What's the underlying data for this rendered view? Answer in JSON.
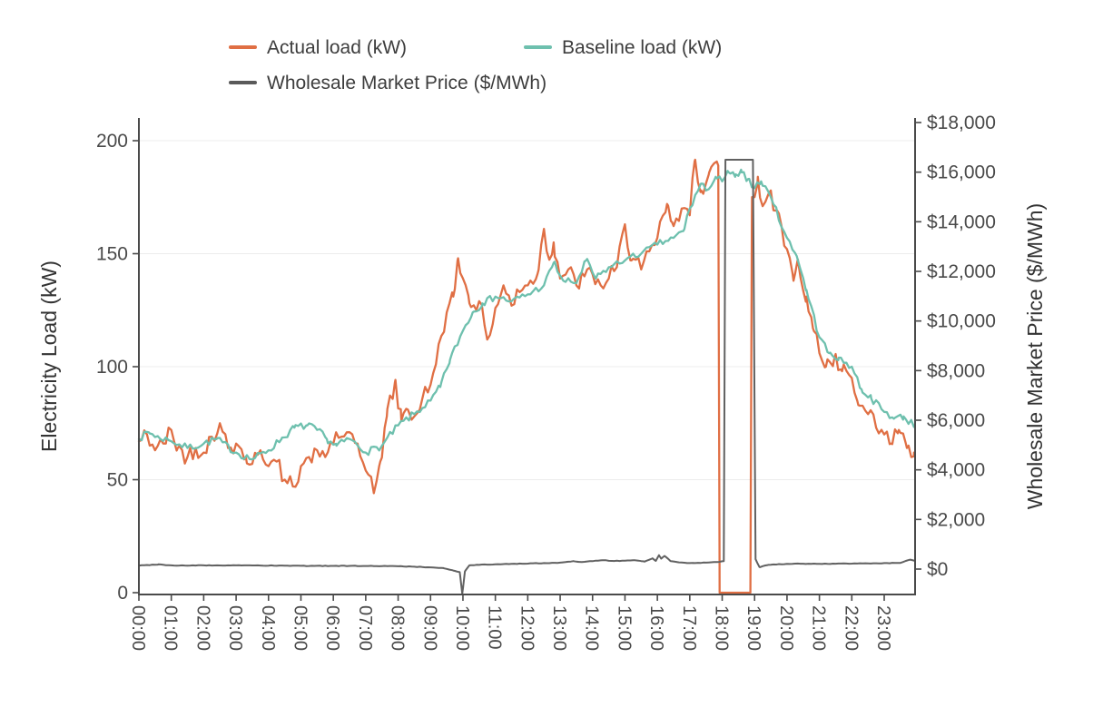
{
  "legend": {
    "items": [
      {
        "label": "Actual load (kW)",
        "color": "#e06f44"
      },
      {
        "label": "Baseline load (kW)",
        "color": "#6ec0ae"
      },
      {
        "label": "Wholesale Market Price ($/MWh)",
        "color": "#5a5a5a"
      }
    ]
  },
  "chart_data": {
    "type": "line",
    "title": "",
    "x_axis": {
      "label": "",
      "tick_labels": [
        "00:00",
        "01:00",
        "02:00",
        "03:00",
        "04:00",
        "05:00",
        "06:00",
        "07:00",
        "08:00",
        "09:00",
        "10:00",
        "11:00",
        "12:00",
        "13:00",
        "14:00",
        "15:00",
        "16:00",
        "17:00",
        "18:00",
        "19:00",
        "20:00",
        "21:00",
        "22:00",
        "23:00"
      ],
      "tick_values": [
        0,
        1,
        2,
        3,
        4,
        5,
        6,
        7,
        8,
        9,
        10,
        11,
        12,
        13,
        14,
        15,
        16,
        17,
        18,
        19,
        20,
        21,
        22,
        23
      ],
      "range_hours": [
        0,
        24
      ]
    },
    "left_axis": {
      "label": "Electricity Load (kW)",
      "tick_labels": [
        "0",
        "50",
        "100",
        "150",
        "200"
      ],
      "tick_values": [
        0,
        50,
        100,
        150,
        200
      ],
      "ylim": [
        0,
        210
      ],
      "gridlines": true
    },
    "right_axis": {
      "label": "Wholesale Market Price ($/MWh)",
      "tick_labels": [
        "$0",
        "$2,000",
        "$4,000",
        "$6,000",
        "$8,000",
        "$10,000",
        "$12,000",
        "$14,000",
        "$16,000",
        "$18,000"
      ],
      "tick_values": [
        0,
        2000,
        4000,
        6000,
        8000,
        10000,
        12000,
        14000,
        16000,
        18000
      ],
      "ylim": [
        -1020,
        18250
      ],
      "gridlines": false
    },
    "annotations": {
      "demand_response_event": {
        "load_drop_window_hours": [
          17.92,
          18.87
        ],
        "price_spike_window_hours": [
          18.1,
          18.97
        ],
        "price_spike_value": 16500,
        "load_during_event": 0
      },
      "negative_price_dip": {
        "time_hours": 9.98,
        "value": -1000
      }
    },
    "series": [
      {
        "name": "Actual load (kW)",
        "axis": "left",
        "color": "#e06f44",
        "points": [
          [
            0,
            67
          ],
          [
            0.25,
            70
          ],
          [
            0.5,
            63
          ],
          [
            0.75,
            66
          ],
          [
            1,
            72
          ],
          [
            1.2,
            64
          ],
          [
            1.5,
            60
          ],
          [
            1.75,
            64
          ],
          [
            2,
            62
          ],
          [
            2.25,
            69
          ],
          [
            2.5,
            75
          ],
          [
            2.75,
            64
          ],
          [
            3,
            66
          ],
          [
            3.3,
            60
          ],
          [
            3.5,
            57
          ],
          [
            3.75,
            63
          ],
          [
            4,
            56
          ],
          [
            4.25,
            58
          ],
          [
            4.5,
            50
          ],
          [
            4.75,
            47
          ],
          [
            5,
            56
          ],
          [
            5.25,
            60
          ],
          [
            5.5,
            63
          ],
          [
            5.75,
            60
          ],
          [
            6,
            66
          ],
          [
            6.25,
            69
          ],
          [
            6.5,
            71
          ],
          [
            6.75,
            66
          ],
          [
            7,
            54
          ],
          [
            7.25,
            44
          ],
          [
            7.45,
            58
          ],
          [
            7.65,
            78
          ],
          [
            7.9,
            93
          ],
          [
            8.1,
            76
          ],
          [
            8.3,
            81
          ],
          [
            8.5,
            78
          ],
          [
            8.75,
            86
          ],
          [
            9,
            92
          ],
          [
            9.25,
            110
          ],
          [
            9.5,
            124
          ],
          [
            9.7,
            131
          ],
          [
            9.85,
            148
          ],
          [
            10,
            139
          ],
          [
            10.2,
            128
          ],
          [
            10.5,
            129
          ],
          [
            10.75,
            112
          ],
          [
            11,
            126
          ],
          [
            11.25,
            136
          ],
          [
            11.5,
            127
          ],
          [
            11.75,
            133
          ],
          [
            12,
            136
          ],
          [
            12.3,
            141
          ],
          [
            12.5,
            161
          ],
          [
            12.65,
            148
          ],
          [
            12.8,
            155
          ],
          [
            13,
            139
          ],
          [
            13.25,
            143
          ],
          [
            13.5,
            136
          ],
          [
            13.75,
            140
          ],
          [
            14,
            141
          ],
          [
            14.25,
            136
          ],
          [
            14.5,
            139
          ],
          [
            14.75,
            144
          ],
          [
            15,
            163
          ],
          [
            15.2,
            147
          ],
          [
            15.5,
            143
          ],
          [
            15.75,
            151
          ],
          [
            16,
            157
          ],
          [
            16.3,
            172
          ],
          [
            16.45,
            164
          ],
          [
            16.75,
            170
          ],
          [
            17,
            167
          ],
          [
            17.15,
            191
          ],
          [
            17.35,
            178
          ],
          [
            17.6,
            186
          ],
          [
            17.88,
            189
          ],
          [
            17.92,
            0
          ],
          [
            18.87,
            0
          ],
          [
            18.92,
            175
          ],
          [
            19.1,
            184
          ],
          [
            19.25,
            171
          ],
          [
            19.45,
            177
          ],
          [
            19.7,
            169
          ],
          [
            20,
            152
          ],
          [
            20.2,
            138
          ],
          [
            20.35,
            146
          ],
          [
            20.6,
            131
          ],
          [
            20.8,
            117
          ],
          [
            21,
            106
          ],
          [
            21.2,
            100
          ],
          [
            21.45,
            103
          ],
          [
            21.7,
            98
          ],
          [
            22,
            95
          ],
          [
            22.2,
            83
          ],
          [
            22.5,
            79
          ],
          [
            22.75,
            73
          ],
          [
            23,
            70
          ],
          [
            23.2,
            66
          ],
          [
            23.45,
            72
          ],
          [
            23.7,
            64
          ],
          [
            23.92,
            62
          ]
        ]
      },
      {
        "name": "Baseline load (kW)",
        "axis": "left",
        "color": "#6ec0ae",
        "points": [
          [
            0,
            68
          ],
          [
            0.3,
            71
          ],
          [
            0.6,
            69
          ],
          [
            1,
            67
          ],
          [
            1.5,
            64
          ],
          [
            2,
            66
          ],
          [
            2.4,
            68
          ],
          [
            3,
            62
          ],
          [
            3.5,
            59
          ],
          [
            4,
            63
          ],
          [
            4.4,
            68
          ],
          [
            4.8,
            73
          ],
          [
            5.2,
            74
          ],
          [
            5.5,
            72
          ],
          [
            5.8,
            68
          ],
          [
            6.1,
            65
          ],
          [
            6.5,
            68
          ],
          [
            7,
            62
          ],
          [
            7.5,
            65
          ],
          [
            8,
            74
          ],
          [
            8.5,
            79
          ],
          [
            9,
            85
          ],
          [
            9.3,
            91
          ],
          [
            9.6,
            103
          ],
          [
            10,
            116
          ],
          [
            10.3,
            124
          ],
          [
            10.6,
            128
          ],
          [
            11,
            131
          ],
          [
            11.5,
            129
          ],
          [
            12,
            132
          ],
          [
            12.5,
            136
          ],
          [
            12.8,
            146
          ],
          [
            13.1,
            138
          ],
          [
            13.5,
            137
          ],
          [
            13.8,
            147
          ],
          [
            14.1,
            139
          ],
          [
            14.5,
            144
          ],
          [
            15,
            147
          ],
          [
            15.5,
            150
          ],
          [
            16,
            154
          ],
          [
            16.5,
            157
          ],
          [
            16.8,
            160
          ],
          [
            17,
            170
          ],
          [
            17.35,
            181
          ],
          [
            17.5,
            178
          ],
          [
            17.8,
            184
          ],
          [
            18,
            182
          ],
          [
            18.2,
            186
          ],
          [
            18.4,
            184
          ],
          [
            18.6,
            186
          ],
          [
            18.8,
            183
          ],
          [
            19,
            179
          ],
          [
            19.2,
            182
          ],
          [
            19.5,
            175
          ],
          [
            20,
            157
          ],
          [
            20.3,
            149
          ],
          [
            20.6,
            134
          ],
          [
            21,
            113
          ],
          [
            21.3,
            106
          ],
          [
            21.6,
            104
          ],
          [
            22,
            100
          ],
          [
            22.3,
            90
          ],
          [
            22.6,
            86
          ],
          [
            23,
            80
          ],
          [
            23.3,
            77
          ],
          [
            23.6,
            78
          ],
          [
            23.92,
            74
          ]
        ]
      },
      {
        "name": "Wholesale Market Price ($/MWh)",
        "axis": "right",
        "color": "#616161",
        "points": [
          [
            0,
            140
          ],
          [
            0.6,
            190
          ],
          [
            1,
            150
          ],
          [
            1.5,
            140
          ],
          [
            2,
            150
          ],
          [
            2.5,
            145
          ],
          [
            3,
            150
          ],
          [
            3.5,
            145
          ],
          [
            4,
            140
          ],
          [
            4.5,
            135
          ],
          [
            5,
            130
          ],
          [
            5.5,
            130
          ],
          [
            6,
            128
          ],
          [
            6.5,
            128
          ],
          [
            7,
            125
          ],
          [
            7.5,
            122
          ],
          [
            8,
            115
          ],
          [
            8.5,
            95
          ],
          [
            9,
            70
          ],
          [
            9.4,
            40
          ],
          [
            9.7,
            -60
          ],
          [
            9.9,
            -120
          ],
          [
            9.98,
            -1000
          ],
          [
            10.06,
            -100
          ],
          [
            10.2,
            150
          ],
          [
            10.5,
            170
          ],
          [
            11,
            190
          ],
          [
            11.5,
            210
          ],
          [
            12,
            220
          ],
          [
            12.5,
            240
          ],
          [
            13,
            260
          ],
          [
            13.4,
            320
          ],
          [
            13.6,
            290
          ],
          [
            14,
            320
          ],
          [
            14.3,
            360
          ],
          [
            14.6,
            330
          ],
          [
            15,
            340
          ],
          [
            15.3,
            360
          ],
          [
            15.6,
            300
          ],
          [
            15.85,
            430
          ],
          [
            15.95,
            330
          ],
          [
            16.05,
            560
          ],
          [
            16.12,
            420
          ],
          [
            16.22,
            530
          ],
          [
            16.4,
            330
          ],
          [
            16.6,
            280
          ],
          [
            17,
            240
          ],
          [
            17.5,
            260
          ],
          [
            17.9,
            290
          ],
          [
            18.05,
            320
          ],
          [
            18.1,
            16500
          ],
          [
            18.95,
            16500
          ],
          [
            19.03,
            400
          ],
          [
            19.15,
            80
          ],
          [
            19.4,
            160
          ],
          [
            19.7,
            190
          ],
          [
            20,
            210
          ],
          [
            20.5,
            215
          ],
          [
            21,
            210
          ],
          [
            21.5,
            215
          ],
          [
            22,
            220
          ],
          [
            22.5,
            230
          ],
          [
            23,
            240
          ],
          [
            23.5,
            250
          ],
          [
            23.8,
            380
          ],
          [
            23.92,
            340
          ]
        ]
      }
    ]
  }
}
